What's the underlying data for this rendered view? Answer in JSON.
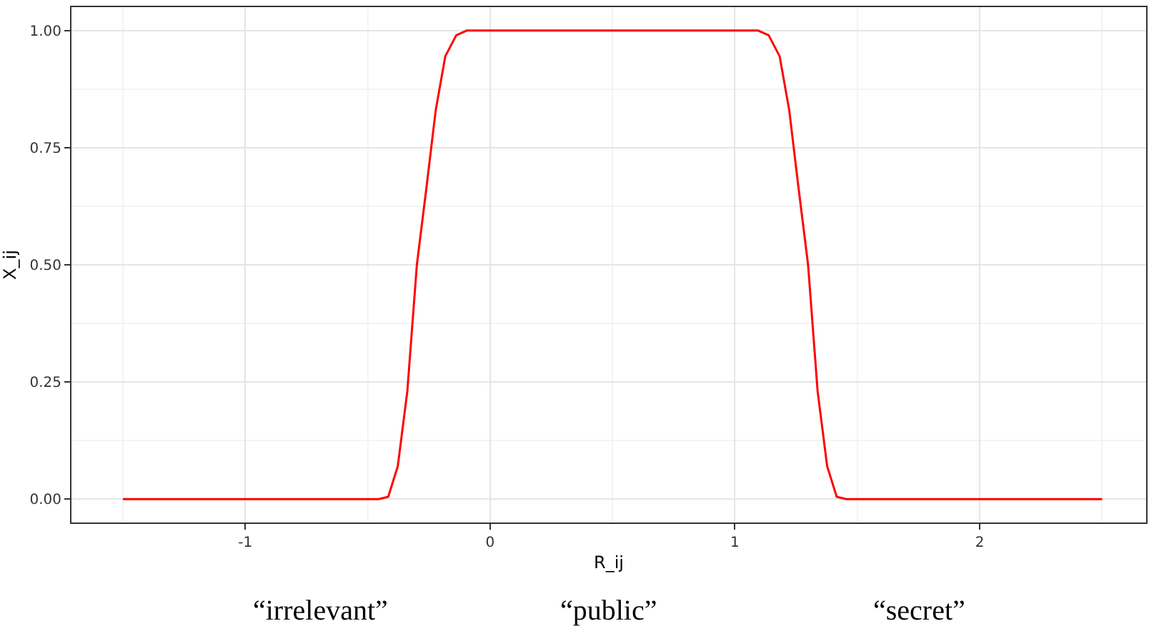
{
  "chart_data": {
    "type": "line",
    "xlabel": "R_ij",
    "ylabel": "X_ij",
    "x": [
      -1.5,
      -0.455,
      -0.416,
      -0.377,
      -0.338,
      -0.299,
      -0.261,
      -0.222,
      -0.183,
      -0.138,
      -0.095,
      1.095,
      1.138,
      1.183,
      1.222,
      1.261,
      1.299,
      1.338,
      1.377,
      1.416,
      1.455,
      2.5
    ],
    "series": [
      {
        "color": "#ff0000",
        "values": [
          0,
          0,
          0.005,
          0.07,
          0.23,
          0.5,
          0.66,
          0.83,
          0.945,
          0.99,
          1,
          1,
          0.99,
          0.945,
          0.83,
          0.66,
          0.5,
          0.23,
          0.07,
          0.005,
          0,
          0
        ]
      }
    ],
    "xlim": [
      -1.71,
      2.68
    ],
    "ylim": [
      -0.05,
      1.05
    ],
    "xticks": [
      -1,
      0,
      1,
      2
    ],
    "yticks": [
      {
        "value": 0,
        "label": "0.00"
      },
      {
        "value": 0.25,
        "label": "0.25"
      },
      {
        "value": 0.5,
        "label": "0.50"
      },
      {
        "value": 0.75,
        "label": "0.75"
      },
      {
        "value": 1,
        "label": "1.00"
      }
    ],
    "grid": true,
    "marker": "none",
    "line_style": "solid",
    "legend": false,
    "annotations": [
      "“irrelevant”",
      "“public”",
      "“secret”"
    ]
  }
}
